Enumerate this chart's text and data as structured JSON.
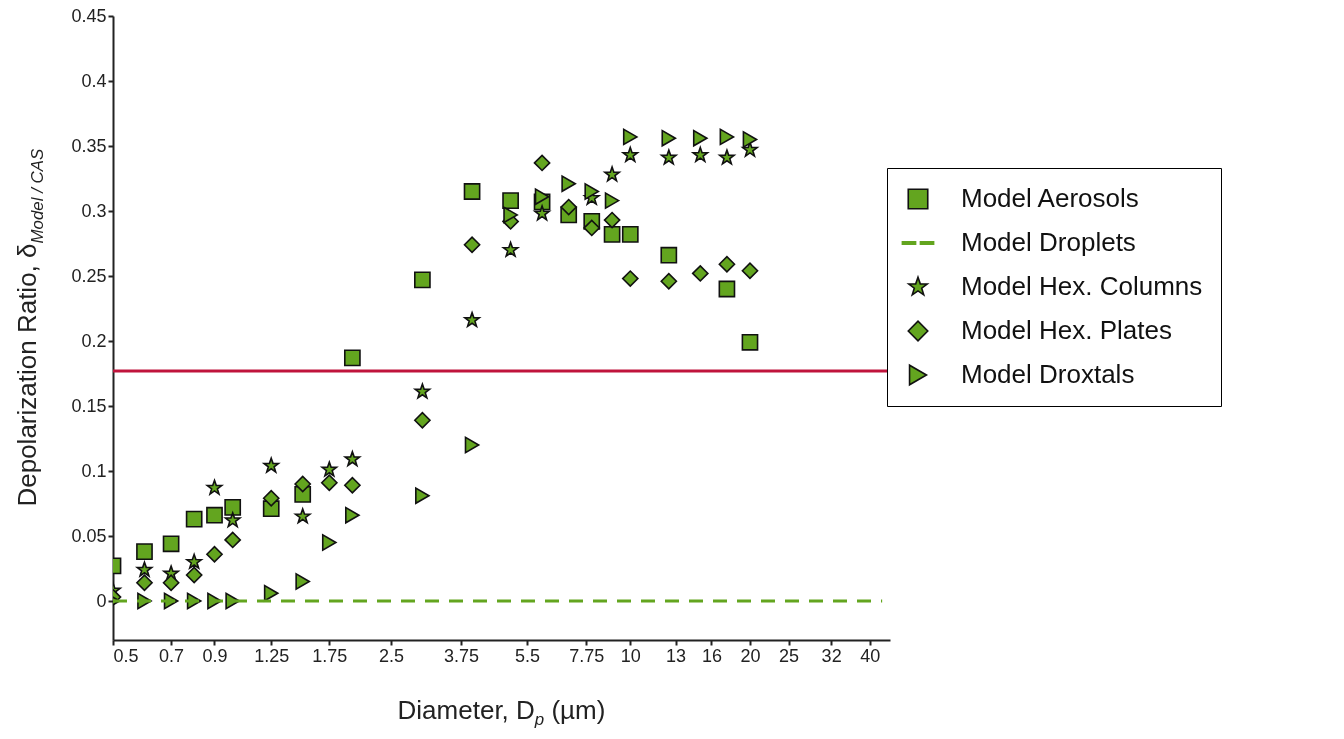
{
  "chart_data": {
    "type": "scatter",
    "xlabel": "Diameter, D$_{p}$ (µm)",
    "ylabel": "Depolarization Ratio, δ$_{Model / CAS}$",
    "x": [
      0.5,
      0.6,
      0.7,
      0.8,
      0.9,
      1.0,
      1.25,
      1.5,
      1.75,
      2.0,
      3.0,
      4.0,
      5.0,
      6.0,
      7.0,
      8.0,
      9.0,
      10,
      12.5,
      15,
      17.5,
      20
    ],
    "series": [
      {
        "name": "Model Aerosols",
        "color": "#63a51f",
        "marker": "square",
        "values": [
          0.027,
          0.038,
          0.044,
          0.063,
          0.066,
          0.072,
          0.071,
          0.082,
          null,
          0.187,
          0.247,
          0.315,
          0.308,
          0.307,
          0.297,
          0.292,
          0.282,
          0.282,
          0.266,
          null,
          0.24,
          0.199
        ]
      },
      {
        "name": "Model Droplets",
        "type": "line",
        "color": "#63a51f",
        "line_style": "dashed",
        "x": [
          0.5,
          43
        ],
        "values": [
          0,
          0
        ]
      },
      {
        "name": "Model Hex. Columns",
        "color": "#63a51f",
        "marker": "star",
        "values": [
          0.008,
          0.024,
          0.021,
          0.03,
          0.087,
          0.062,
          0.104,
          0.065,
          0.101,
          0.109,
          0.161,
          0.216,
          0.27,
          0.298,
          null,
          0.31,
          0.328,
          0.343,
          0.341,
          0.343,
          0.341,
          0.347
        ]
      },
      {
        "name": "Model Hex. Plates",
        "color": "#63a51f",
        "marker": "diamond",
        "values": [
          0.003,
          0.014,
          0.014,
          0.02,
          0.036,
          0.047,
          0.079,
          0.09,
          0.091,
          0.089,
          0.139,
          0.274,
          0.292,
          0.337,
          0.303,
          0.287,
          0.293,
          0.248,
          0.246,
          0.252,
          0.259,
          0.254
        ]
      },
      {
        "name": "Model Droxtals",
        "color": "#63a51f",
        "marker": "triangle",
        "values": [
          0,
          0,
          0,
          0,
          0,
          0,
          0.006,
          0.015,
          0.045,
          0.066,
          0.081,
          0.12,
          0.297,
          0.311,
          0.321,
          0.315,
          0.308,
          0.357,
          0.356,
          0.356,
          0.357,
          0.355
        ]
      }
    ],
    "xlim": [
      0.5,
      45
    ],
    "xticks": [
      0.5,
      0.7,
      0.9,
      1.25,
      1.75,
      2.5,
      3.75,
      5.5,
      7.75,
      10,
      13,
      16,
      20,
      25,
      32,
      40
    ],
    "ylim": [
      -0.03,
      0.45
    ],
    "yticks": [
      0,
      0.05,
      0.1,
      0.15,
      0.2,
      0.25,
      0.3,
      0.35,
      0.4,
      0.45
    ],
    "log": "x",
    "grid": false,
    "legend": "right",
    "ref_lines": [
      {
        "axis": "y",
        "value": 0.177,
        "color": "#c0143c"
      }
    ]
  }
}
